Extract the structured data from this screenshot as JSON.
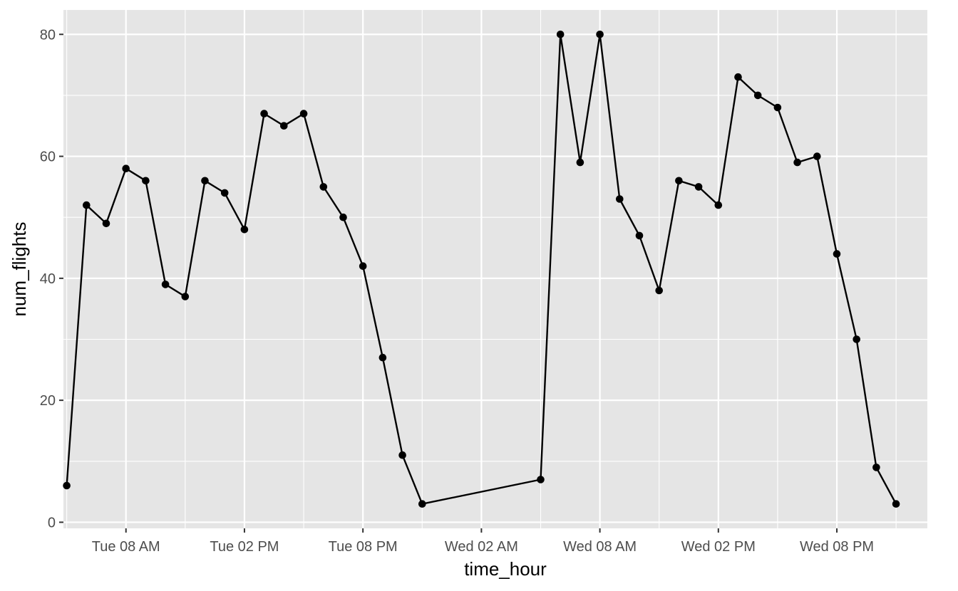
{
  "chart_data": {
    "type": "line",
    "xlabel": "time_hour",
    "ylabel": "num_flights",
    "ylim": [
      -1,
      84
    ],
    "x_range": [
      "Tue 04:50 AM",
      "Thu 12:35 AM"
    ],
    "y_ticks": [
      0,
      20,
      40,
      60,
      80
    ],
    "x_ticks": [
      {
        "time": "Tue 08:00",
        "label": "Tue 08 AM"
      },
      {
        "time": "Tue 14:00",
        "label": "Tue 02 PM"
      },
      {
        "time": "Tue 20:00",
        "label": "Tue 08 PM"
      },
      {
        "time": "Wed 02:00",
        "label": "Wed 02 AM"
      },
      {
        "time": "Wed 08:00",
        "label": "Wed 08 AM"
      },
      {
        "time": "Wed 14:00",
        "label": "Wed 02 PM"
      },
      {
        "time": "Wed 20:00",
        "label": "Wed 08 PM"
      }
    ],
    "grid": true,
    "points": true,
    "colors": {
      "panel": "#e5e5e5",
      "grid": "#ffffff",
      "line": "#000000"
    },
    "series": [
      {
        "x": [
          "Tue 05:00",
          "Tue 06:00",
          "Tue 07:00",
          "Tue 08:00",
          "Tue 09:00",
          "Tue 10:00",
          "Tue 11:00",
          "Tue 12:00",
          "Tue 13:00",
          "Tue 14:00",
          "Tue 15:00",
          "Tue 16:00",
          "Tue 17:00",
          "Tue 18:00",
          "Tue 19:00",
          "Tue 20:00",
          "Tue 21:00",
          "Tue 22:00",
          "Tue 23:00",
          "Wed 05:00",
          "Wed 06:00",
          "Wed 07:00",
          "Wed 08:00",
          "Wed 09:00",
          "Wed 10:00",
          "Wed 11:00",
          "Wed 12:00",
          "Wed 13:00",
          "Wed 14:00",
          "Wed 15:00",
          "Wed 16:00",
          "Wed 17:00",
          "Wed 18:00",
          "Wed 19:00",
          "Wed 20:00",
          "Wed 21:00",
          "Wed 22:00",
          "Wed 23:00"
        ],
        "y": [
          6,
          52,
          49,
          58,
          56,
          39,
          37,
          56,
          54,
          48,
          67,
          65,
          67,
          55,
          50,
          42,
          27,
          11,
          3,
          7,
          80,
          59,
          80,
          53,
          47,
          38,
          56,
          55,
          52,
          73,
          70,
          68,
          59,
          60,
          44,
          30,
          9,
          3
        ]
      }
    ]
  }
}
